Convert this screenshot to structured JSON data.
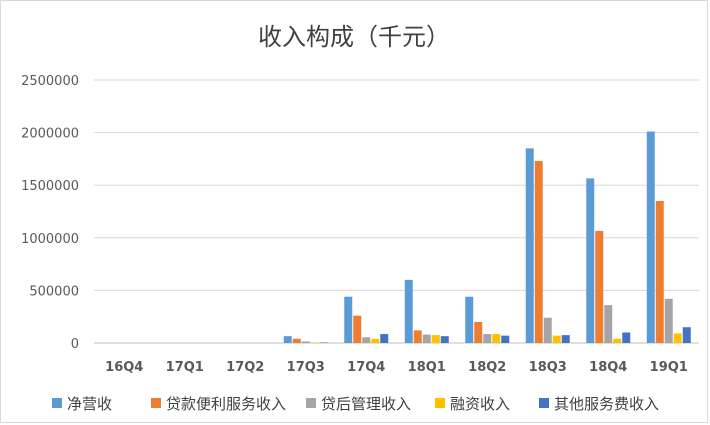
{
  "chart_data": {
    "type": "bar",
    "title": "收入构成（千元）",
    "xlabel": "",
    "ylabel": "",
    "ylim": [
      0,
      2500000
    ],
    "yticks": [
      0,
      500000,
      1000000,
      1500000,
      2000000,
      2500000
    ],
    "ytick_labels": [
      "0",
      "500000",
      "1000000",
      "1500000",
      "2000000",
      "2500000"
    ],
    "grid": true,
    "legend_position": "bottom",
    "categories": [
      "16Q4",
      "17Q1",
      "17Q2",
      "17Q3",
      "17Q4",
      "18Q1",
      "18Q2",
      "18Q3",
      "18Q4",
      "19Q1"
    ],
    "series": [
      {
        "name": "净营收",
        "color": "#5B9BD5",
        "values": [
          0,
          0,
          0,
          65000,
          440000,
          600000,
          440000,
          1850000,
          1565000,
          2010000
        ]
      },
      {
        "name": "贷款便利服务收入",
        "color": "#ED7D31",
        "values": [
          0,
          0,
          0,
          40000,
          260000,
          120000,
          200000,
          1730000,
          1065000,
          1350000
        ]
      },
      {
        "name": "贷后管理收入",
        "color": "#A5A5A5",
        "values": [
          0,
          0,
          0,
          15000,
          55000,
          80000,
          85000,
          240000,
          360000,
          420000
        ]
      },
      {
        "name": "融资收入",
        "color": "#FFC000",
        "values": [
          0,
          0,
          0,
          5000,
          40000,
          75000,
          85000,
          70000,
          40000,
          90000
        ]
      },
      {
        "name": "其他服务费收入",
        "color": "#4472C4",
        "values": [
          0,
          0,
          0,
          5000,
          85000,
          65000,
          70000,
          75000,
          100000,
          150000
        ]
      }
    ]
  }
}
